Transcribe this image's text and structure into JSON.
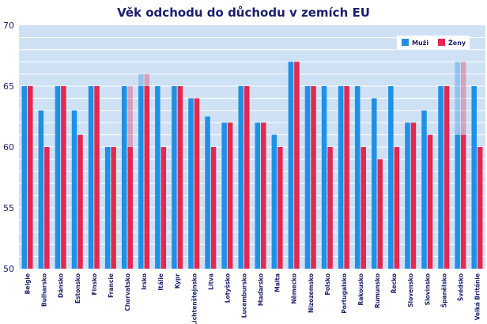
{
  "chart_data": {
    "type": "bar",
    "title": "Věk odchodu do důchodu v zemích EU",
    "xlabel": "",
    "ylabel": "",
    "ylim": [
      50,
      70
    ],
    "yticks": [
      50,
      55,
      60,
      65,
      70
    ],
    "grid": true,
    "legend_position": "top-right",
    "categories": [
      "Belgie",
      "Bulharsko",
      "Dánsko",
      "Estonsko",
      "Finsko",
      "Francie",
      "Chorvatsko",
      "Irsko",
      "Itálie",
      "Kypr",
      "Lichtenštejnsko",
      "Litva",
      "Lotyšsko",
      "Lucembursko",
      "Maďarsko",
      "Malta",
      "Německo",
      "Nizozemsko",
      "Polsko",
      "Portugalsko",
      "Rakousko",
      "Rumunsko",
      "Řecko",
      "Slovensko",
      "Slovinsko",
      "Španělsko",
      "Švédsko",
      "Velká Británie"
    ],
    "series": [
      {
        "name": "Muži",
        "color": "#1e90e6",
        "values": [
          65,
          63,
          65,
          63,
          65,
          60,
          65,
          65,
          65,
          65,
          64,
          62.5,
          62,
          65,
          62,
          61,
          67,
          65,
          65,
          65,
          65,
          64,
          65,
          62,
          63,
          65,
          61,
          65
        ],
        "upper": [
          null,
          null,
          null,
          null,
          null,
          null,
          null,
          66,
          null,
          null,
          null,
          null,
          null,
          null,
          null,
          null,
          null,
          null,
          null,
          null,
          null,
          null,
          null,
          null,
          null,
          null,
          67,
          null
        ]
      },
      {
        "name": "Ženy",
        "color": "#e3294f",
        "values": [
          65,
          60,
          65,
          61,
          65,
          60,
          60,
          65,
          60,
          65,
          64,
          60,
          62,
          65,
          62,
          60,
          67,
          65,
          60,
          65,
          60,
          59,
          60,
          62,
          61,
          65,
          61,
          60
        ],
        "upper": [
          null,
          null,
          null,
          null,
          null,
          null,
          65,
          66,
          null,
          null,
          null,
          null,
          null,
          null,
          null,
          null,
          null,
          null,
          null,
          null,
          null,
          null,
          null,
          null,
          null,
          null,
          67,
          null
        ]
      }
    ]
  }
}
